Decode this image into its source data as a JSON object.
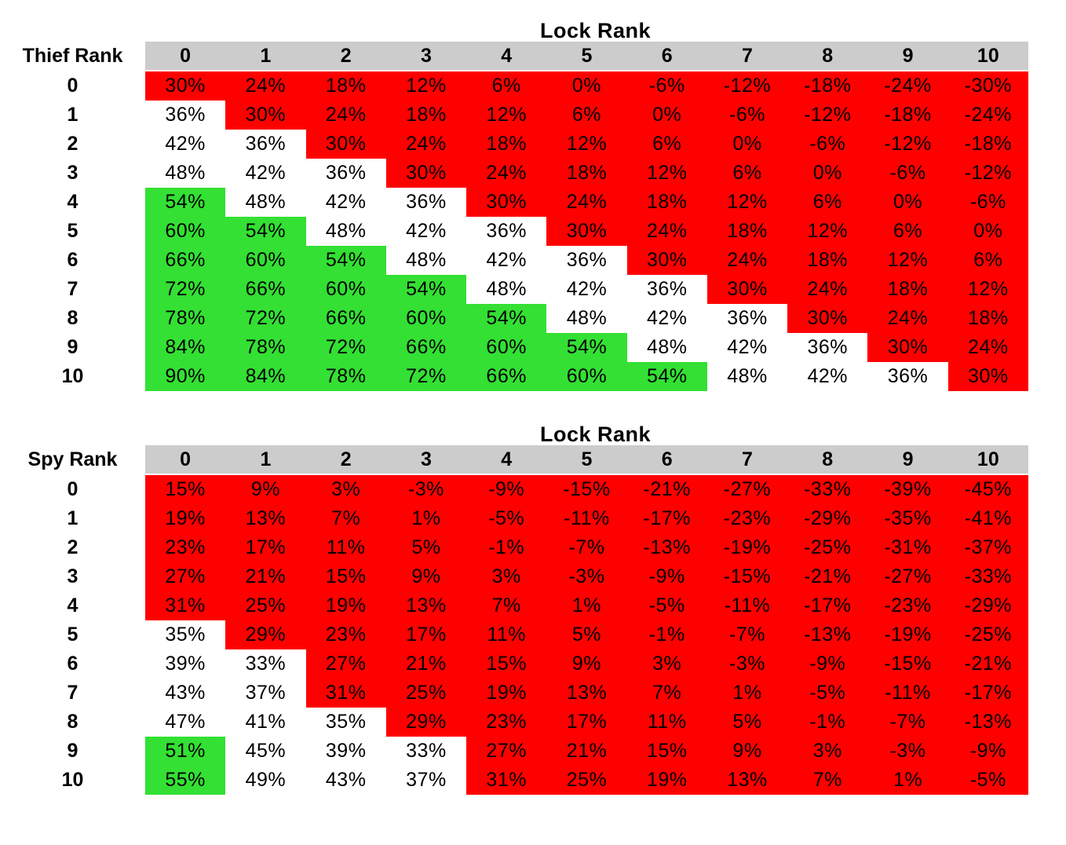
{
  "colors": {
    "red": "#FF0000",
    "green": "#33E033",
    "white": "#FFFFFF",
    "header_gray": "#CCCCCC",
    "text": "#000000",
    "background": "#FFFFFF"
  },
  "chart_data": [
    {
      "type": "heatmap",
      "name": "thief-rank-table",
      "title": "Lock Rank",
      "row_header": "Thief Rank",
      "col_labels": [
        "0",
        "1",
        "2",
        "3",
        "4",
        "5",
        "6",
        "7",
        "8",
        "9",
        "10"
      ],
      "row_labels": [
        "0",
        "1",
        "2",
        "3",
        "4",
        "5",
        "6",
        "7",
        "8",
        "9",
        "10"
      ],
      "values": [
        [
          "30%",
          "24%",
          "18%",
          "12%",
          "6%",
          "0%",
          "-6%",
          "-12%",
          "-18%",
          "-24%",
          "-30%"
        ],
        [
          "36%",
          "30%",
          "24%",
          "18%",
          "12%",
          "6%",
          "0%",
          "-6%",
          "-12%",
          "-18%",
          "-24%"
        ],
        [
          "42%",
          "36%",
          "30%",
          "24%",
          "18%",
          "12%",
          "6%",
          "0%",
          "-6%",
          "-12%",
          "-18%"
        ],
        [
          "48%",
          "42%",
          "36%",
          "30%",
          "24%",
          "18%",
          "12%",
          "6%",
          "0%",
          "-6%",
          "-12%"
        ],
        [
          "54%",
          "48%",
          "42%",
          "36%",
          "30%",
          "24%",
          "18%",
          "12%",
          "6%",
          "0%",
          "-6%"
        ],
        [
          "60%",
          "54%",
          "48%",
          "42%",
          "36%",
          "30%",
          "24%",
          "18%",
          "12%",
          "6%",
          "0%"
        ],
        [
          "66%",
          "60%",
          "54%",
          "48%",
          "42%",
          "36%",
          "30%",
          "24%",
          "18%",
          "12%",
          "6%"
        ],
        [
          "72%",
          "66%",
          "60%",
          "54%",
          "48%",
          "42%",
          "36%",
          "30%",
          "24%",
          "18%",
          "12%"
        ],
        [
          "78%",
          "72%",
          "66%",
          "60%",
          "54%",
          "48%",
          "42%",
          "36%",
          "30%",
          "24%",
          "18%"
        ],
        [
          "84%",
          "78%",
          "72%",
          "66%",
          "60%",
          "54%",
          "48%",
          "42%",
          "36%",
          "30%",
          "24%"
        ],
        [
          "90%",
          "84%",
          "78%",
          "72%",
          "66%",
          "60%",
          "54%",
          "48%",
          "42%",
          "36%",
          "30%"
        ]
      ],
      "cell_colors": [
        "rrrrrrrrrrr",
        "wrrrrrrrrrr",
        "wwrrrrrrrrr",
        "wwwrrrrrrrr",
        "gwwwrrrrrrr",
        "ggwwwrrrrrr",
        "gggwwwrrrrr",
        "ggggwwwrrrr",
        "gggggwwwrrr",
        "ggggggwwwrr",
        "gggggggwwwr"
      ]
    },
    {
      "type": "heatmap",
      "name": "spy-rank-table",
      "title": "Lock Rank",
      "row_header": "Spy Rank",
      "col_labels": [
        "0",
        "1",
        "2",
        "3",
        "4",
        "5",
        "6",
        "7",
        "8",
        "9",
        "10"
      ],
      "row_labels": [
        "0",
        "1",
        "2",
        "3",
        "4",
        "5",
        "6",
        "7",
        "8",
        "9",
        "10"
      ],
      "values": [
        [
          "15%",
          "9%",
          "3%",
          "-3%",
          "-9%",
          "-15%",
          "-21%",
          "-27%",
          "-33%",
          "-39%",
          "-45%"
        ],
        [
          "19%",
          "13%",
          "7%",
          "1%",
          "-5%",
          "-11%",
          "-17%",
          "-23%",
          "-29%",
          "-35%",
          "-41%"
        ],
        [
          "23%",
          "17%",
          "11%",
          "5%",
          "-1%",
          "-7%",
          "-13%",
          "-19%",
          "-25%",
          "-31%",
          "-37%"
        ],
        [
          "27%",
          "21%",
          "15%",
          "9%",
          "3%",
          "-3%",
          "-9%",
          "-15%",
          "-21%",
          "-27%",
          "-33%"
        ],
        [
          "31%",
          "25%",
          "19%",
          "13%",
          "7%",
          "1%",
          "-5%",
          "-11%",
          "-17%",
          "-23%",
          "-29%"
        ],
        [
          "35%",
          "29%",
          "23%",
          "17%",
          "11%",
          "5%",
          "-1%",
          "-7%",
          "-13%",
          "-19%",
          "-25%"
        ],
        [
          "39%",
          "33%",
          "27%",
          "21%",
          "15%",
          "9%",
          "3%",
          "-3%",
          "-9%",
          "-15%",
          "-21%"
        ],
        [
          "43%",
          "37%",
          "31%",
          "25%",
          "19%",
          "13%",
          "7%",
          "1%",
          "-5%",
          "-11%",
          "-17%"
        ],
        [
          "47%",
          "41%",
          "35%",
          "29%",
          "23%",
          "17%",
          "11%",
          "5%",
          "-1%",
          "-7%",
          "-13%"
        ],
        [
          "51%",
          "45%",
          "39%",
          "33%",
          "27%",
          "21%",
          "15%",
          "9%",
          "3%",
          "-3%",
          "-9%"
        ],
        [
          "55%",
          "49%",
          "43%",
          "37%",
          "31%",
          "25%",
          "19%",
          "13%",
          "7%",
          "1%",
          "-5%"
        ]
      ],
      "cell_colors": [
        "rrrrrrrrrrr",
        "rrrrrrrrrrr",
        "rrrrrrrrrrr",
        "rrrrrrrrrrr",
        "rrrrrrrrrrr",
        "wrrrrrrrrrr",
        "wwrrrrrrrrr",
        "wwrrrrrrrrr",
        "wwwrrrrrrrr",
        "gwwwrrrrrrr",
        "gwwwrrrrrrr"
      ]
    }
  ]
}
